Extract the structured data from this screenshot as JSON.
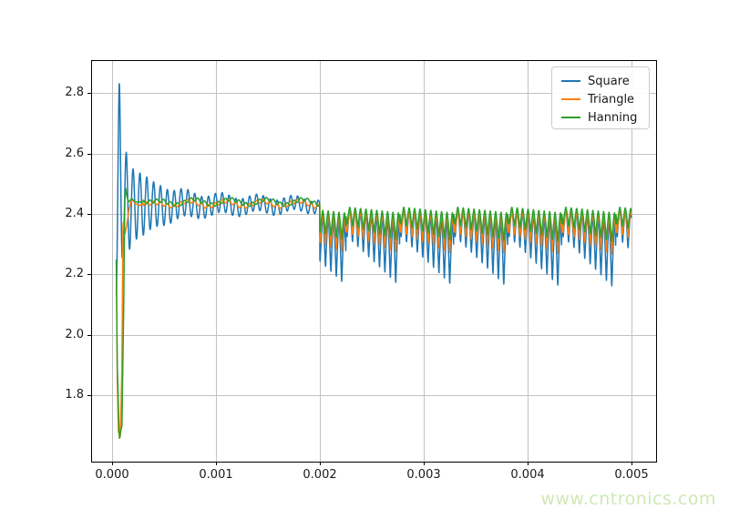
{
  "watermark": {
    "text": "www.cntronics.com",
    "color": "#cee9b5"
  },
  "chart_data": {
    "type": "line",
    "title": "",
    "xlabel": "",
    "ylabel": "",
    "grid": true,
    "grid_color": "#c2c2c2",
    "axis_color": "#000000",
    "tick_label_color": "#1a1a1a",
    "background": "#ffffff",
    "xlim": [
      -0.0002018,
      0.0052368
    ],
    "ylim": [
      1.58,
      2.91
    ],
    "x_ticks": {
      "values": [
        0,
        0.001,
        0.002,
        0.003,
        0.004,
        0.005
      ],
      "labels": [
        "0.000",
        "0.001",
        "0.002",
        "0.003",
        "0.004",
        "0.005"
      ]
    },
    "y_ticks": {
      "values": [
        1.8,
        2.0,
        2.2,
        2.4,
        2.6,
        2.8
      ],
      "labels": [
        "1.8",
        "2.0",
        "2.2",
        "2.4",
        "2.6",
        "2.8"
      ]
    },
    "legend": {
      "position": "upper right",
      "entries": [
        {
          "label": "Square",
          "color": "#1f77b4"
        },
        {
          "label": "Triangle",
          "color": "#ff7f0e"
        },
        {
          "label": "Hanning",
          "color": "#2ca02c"
        }
      ]
    },
    "signal_model": {
      "x_end": 0.005,
      "dx": 2.6e-06,
      "disturbance_start": 0.002,
      "group_period": 0.00052,
      "group_phase_offset": 0.00027,
      "spike_period": 5.2e-05,
      "spike_sharpness": 1.3,
      "slow_mod": {
        "start": 0.0003,
        "fade": 0.0003,
        "amp": 0.009,
        "period": 0.00035
      }
    },
    "series": [
      {
        "name": "Square",
        "color": "#1f77b4",
        "line_width": 1.5,
        "slow_phase": 1.6,
        "transient": {
          "type": "ringing",
          "start_x": 4e-05,
          "center": 2.43,
          "period": 6.6e-05,
          "phase_x": 7e-05,
          "amp_points": [
            [
              4e-05,
              0.31
            ],
            [
              7e-05,
              0.41
            ],
            [
              0.000103,
              0.16
            ],
            [
              0.000136,
              0.175
            ],
            [
              0.0002,
              0.12
            ],
            [
              0.0003,
              0.1
            ],
            [
              0.0004,
              0.075
            ],
            [
              0.0006,
              0.05
            ],
            [
              0.0009,
              0.035
            ],
            [
              0.0013,
              0.028
            ],
            [
              0.0017,
              0.024
            ],
            [
              0.002,
              0.02
            ]
          ]
        },
        "region2": {
          "top0": 2.42,
          "top_slope": -0.04,
          "dmin": 0.095,
          "dmax": 0.225,
          "dmax_growth": 0.02
        }
      },
      {
        "name": "Triangle",
        "color": "#ff7f0e",
        "line_width": 1.5,
        "slow_phase": 0.8,
        "transient": {
          "type": "rise",
          "rise_points": [
            [
              4.2e-05,
              2.2
            ],
            [
              5e-05,
              1.85
            ],
            [
              6e-05,
              1.68
            ],
            [
              8e-05,
              1.66
            ],
            [
              9.5e-05,
              1.9
            ],
            [
              0.000105,
              2.375
            ],
            [
              0.000125,
              2.335
            ],
            [
              0.00014,
              2.36
            ],
            [
              0.00016,
              2.41
            ],
            [
              0.00018,
              2.44
            ],
            [
              0.0002,
              2.447
            ],
            [
              0.00022,
              2.435
            ],
            [
              0.00026,
              2.428
            ],
            [
              0.0003,
              2.435
            ]
          ],
          "steady": 2.434,
          "ripple_amp": 0.006,
          "ripple_period": 6.6e-05,
          "ripple_phase": 0.000135
        },
        "region2": {
          "top0": 2.415,
          "top_slope": -0.02,
          "dmin": 0.075,
          "dmax": 0.125,
          "dmax_growth": 0.012
        }
      },
      {
        "name": "Hanning",
        "color": "#2ca02c",
        "line_width": 1.5,
        "slow_phase": 0,
        "transient": {
          "type": "rise",
          "rise_points": [
            [
              4e-05,
              2.25
            ],
            [
              5e-05,
              1.9
            ],
            [
              7e-05,
              1.655
            ],
            [
              9.5e-05,
              1.7
            ],
            [
              0.000112,
              2.1
            ],
            [
              0.000122,
              2.44
            ],
            [
              0.00013,
              2.487
            ],
            [
              0.000145,
              2.455
            ],
            [
              0.00016,
              2.44
            ],
            [
              0.00019,
              2.452
            ],
            [
              0.00022,
              2.44
            ],
            [
              0.0003,
              2.44
            ]
          ],
          "steady": 2.44,
          "ripple_amp": 0.006,
          "ripple_period": 6.6e-05,
          "ripple_phase": 0.0001
        },
        "region2": {
          "top0": 2.425,
          "top_slope": -0.02,
          "dmin": 0.06,
          "dmax": 0.095,
          "dmax_growth": 0.012
        }
      }
    ]
  }
}
